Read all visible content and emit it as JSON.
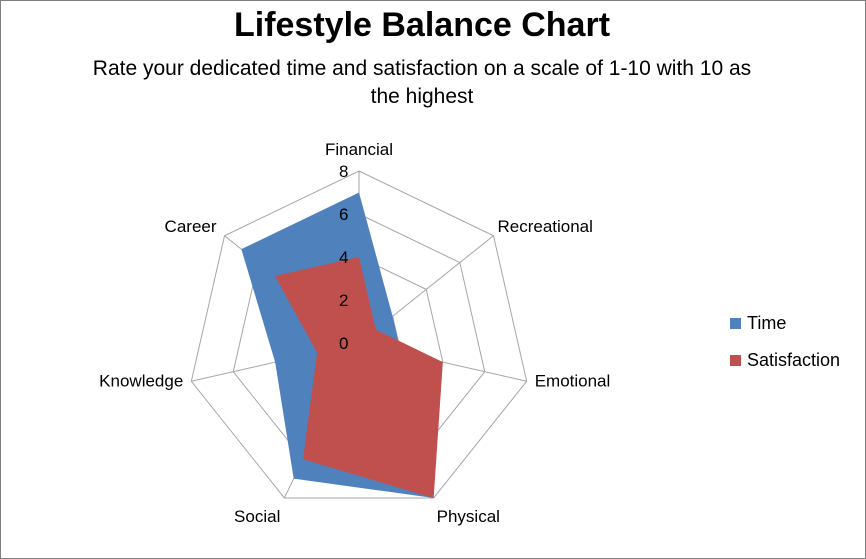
{
  "chart_data": {
    "type": "radar",
    "title": "Lifestyle Balance Chart",
    "subtitle": "Rate your dedicated time and satisfaction on a scale of 1-10 with 10 as the highest",
    "categories": [
      "Financial",
      "Recreational",
      "Emotional",
      "Physical",
      "Social",
      "Knowledge",
      "Career"
    ],
    "ticks": [
      "0",
      "2",
      "4",
      "6",
      "8"
    ],
    "rlim": [
      0,
      8
    ],
    "grid": true,
    "legend_position": "right",
    "series": [
      {
        "name": "Time",
        "color": "#4f81bd",
        "values": [
          7,
          2,
          2,
          8,
          7,
          4,
          7
        ]
      },
      {
        "name": "Satisfaction",
        "color": "#c0504d",
        "values": [
          4,
          1,
          4,
          8,
          6,
          2,
          5
        ]
      }
    ]
  }
}
